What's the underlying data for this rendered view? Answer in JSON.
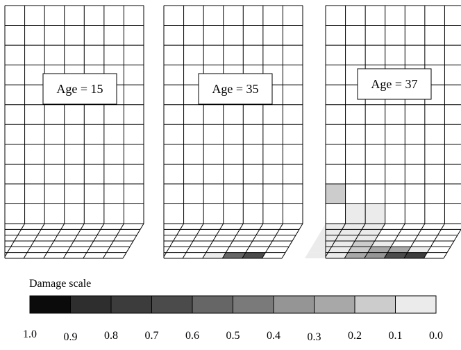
{
  "panels": [
    {
      "age_label": "Age = 15",
      "damaged_cells": []
    },
    {
      "age_label": "Age = 35",
      "damaged_cells": [
        {
          "region": "wedge",
          "row": 5,
          "col": 3,
          "level": 0.1
        },
        {
          "region": "wedge",
          "row": 5,
          "col": 4,
          "level": 0.6
        },
        {
          "region": "wedge",
          "row": 5,
          "col": 5,
          "level": 0.7
        }
      ]
    },
    {
      "age_label": "Age = 37",
      "damaged_cells": [
        {
          "region": "rect",
          "row": 9,
          "col": 0,
          "level": 0.2
        },
        {
          "region": "rect",
          "row": 10,
          "col": 1,
          "level": 0.1
        },
        {
          "region": "rect",
          "row": 10,
          "col": 2,
          "level": 0.1
        },
        {
          "region": "wedge",
          "row": 0,
          "col": 0,
          "level": 0.1
        },
        {
          "region": "wedge",
          "row": 0,
          "col": 1,
          "level": 0.1
        },
        {
          "region": "wedge",
          "row": 0,
          "col": 2,
          "level": 0.1
        },
        {
          "region": "wedge",
          "row": 1,
          "col": 0,
          "level": 0.1
        },
        {
          "region": "wedge",
          "row": 1,
          "col": 1,
          "level": 0.1
        },
        {
          "region": "wedge",
          "row": 1,
          "col": 2,
          "level": 0.1
        },
        {
          "region": "wedge",
          "row": 2,
          "col": 0,
          "level": 0.1
        },
        {
          "region": "wedge",
          "row": 2,
          "col": 1,
          "level": 0.1
        },
        {
          "region": "wedge",
          "row": 2,
          "col": 2,
          "level": 0.1
        },
        {
          "region": "wedge",
          "row": 3,
          "col": 0,
          "level": 0.1
        },
        {
          "region": "wedge",
          "row": 3,
          "col": 1,
          "level": 0.1
        },
        {
          "region": "wedge",
          "row": 3,
          "col": 2,
          "level": 0.2
        },
        {
          "region": "wedge",
          "row": 3,
          "col": 3,
          "level": 0.1
        },
        {
          "region": "wedge",
          "row": 4,
          "col": 0,
          "level": 0.1
        },
        {
          "region": "wedge",
          "row": 4,
          "col": 1,
          "level": 0.1
        },
        {
          "region": "wedge",
          "row": 4,
          "col": 2,
          "level": 0.2
        },
        {
          "region": "wedge",
          "row": 4,
          "col": 3,
          "level": 0.3
        },
        {
          "region": "wedge",
          "row": 4,
          "col": 4,
          "level": 0.3
        },
        {
          "region": "wedge",
          "row": 4,
          "col": 5,
          "level": 0.1
        },
        {
          "region": "wedge",
          "row": 5,
          "col": 0,
          "level": 0.1
        },
        {
          "region": "wedge",
          "row": 5,
          "col": 1,
          "level": 0.1
        },
        {
          "region": "wedge",
          "row": 5,
          "col": 2,
          "level": 0.3
        },
        {
          "region": "wedge",
          "row": 5,
          "col": 3,
          "level": 0.4
        },
        {
          "region": "wedge",
          "row": 5,
          "col": 4,
          "level": 0.7
        },
        {
          "region": "wedge",
          "row": 5,
          "col": 5,
          "level": 0.8
        }
      ]
    }
  ],
  "scale": {
    "title": "Damage scale",
    "tick_labels": [
      "1.0",
      "0.9",
      "0.8",
      "0.7",
      "0.6",
      "0.5",
      "0.4",
      "0.3",
      "0.2",
      "0.1",
      "0.0"
    ],
    "segment_colors": [
      "#0b0b0b",
      "#2e2e2e",
      "#3c3c3c",
      "#4b4b4b",
      "#666666",
      "#7a7a7a",
      "#959595",
      "#a8a8a8",
      "#cccccc",
      "#ebebeb"
    ]
  }
}
